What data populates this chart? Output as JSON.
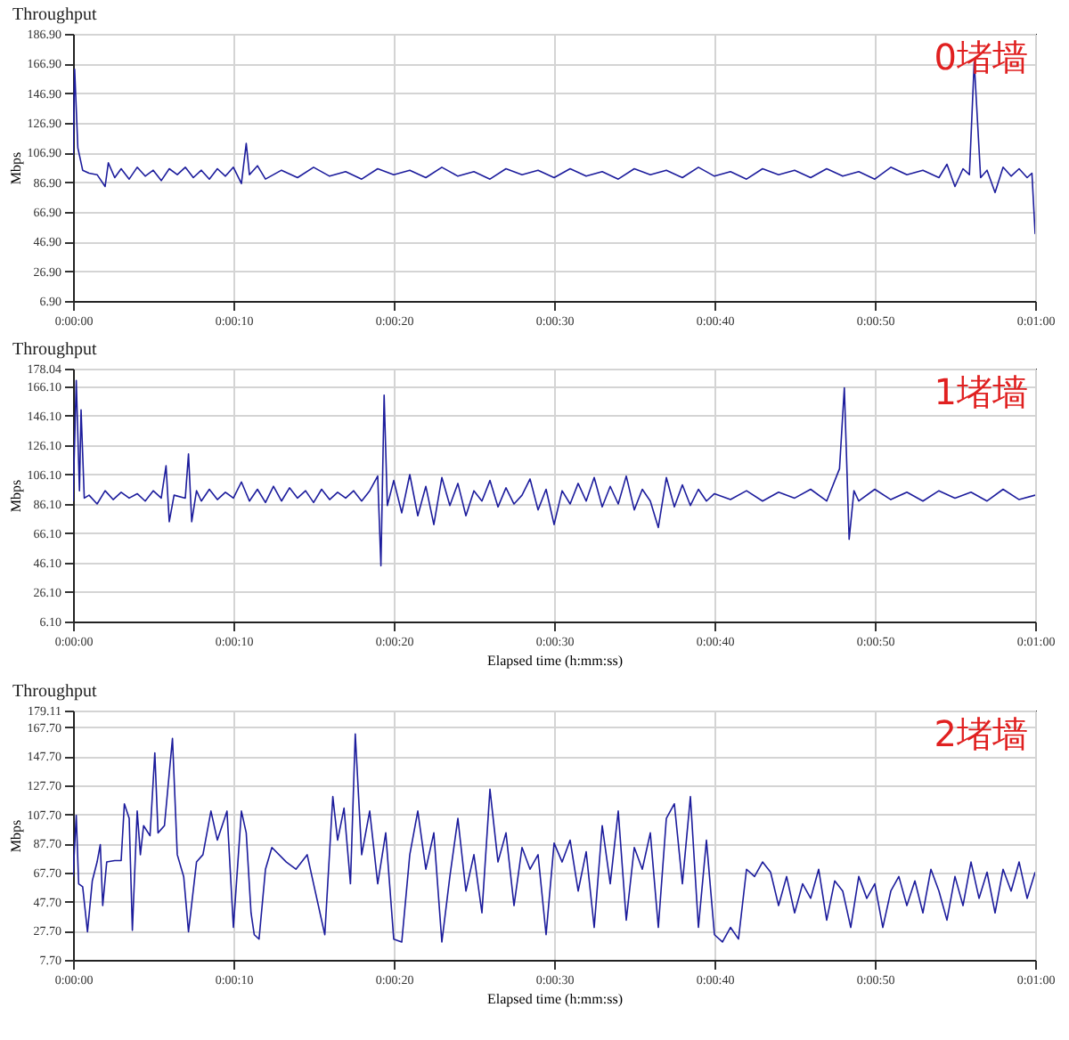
{
  "chart_data": [
    {
      "type": "line",
      "title": "Throughput",
      "ylabel": "Mbps",
      "annotations": [
        "0堵墙"
      ],
      "grid": true,
      "xlim": [
        0,
        60
      ],
      "xticks": [
        {
          "value": 0,
          "label": "0:00:00"
        },
        {
          "value": 10,
          "label": "0:00:10"
        },
        {
          "value": 20,
          "label": "0:00:20"
        },
        {
          "value": 30,
          "label": "0:00:30"
        },
        {
          "value": 40,
          "label": "0:00:40"
        },
        {
          "value": 50,
          "label": "0:00:50"
        },
        {
          "value": 60,
          "label": "0:01:00"
        }
      ],
      "ylim": [
        6.9,
        186.9
      ],
      "yticks": [
        {
          "value": 6.9,
          "label": "6.90"
        },
        {
          "value": 26.9,
          "label": "26.90"
        },
        {
          "value": 46.9,
          "label": "46.90"
        },
        {
          "value": 66.9,
          "label": "66.90"
        },
        {
          "value": 86.9,
          "label": "86.90"
        },
        {
          "value": 106.9,
          "label": "106.90"
        },
        {
          "value": 126.9,
          "label": "126.90"
        },
        {
          "value": 146.9,
          "label": "146.90"
        },
        {
          "value": 166.9,
          "label": "166.90"
        },
        {
          "value": 186.9,
          "label": "186.90"
        }
      ],
      "x": [
        0,
        0.1,
        0.3,
        0.6,
        1,
        1.5,
        2,
        2.2,
        2.6,
        3,
        3.5,
        4,
        4.5,
        5,
        5.5,
        6,
        6.5,
        7,
        7.5,
        8,
        8.5,
        9,
        9.5,
        10,
        10.5,
        10.8,
        11,
        11.5,
        12,
        13,
        14,
        15,
        16,
        17,
        18,
        19,
        20,
        21,
        22,
        23,
        24,
        25,
        26,
        27,
        28,
        29,
        30,
        31,
        32,
        33,
        34,
        35,
        36,
        37,
        38,
        39,
        40,
        41,
        42,
        43,
        44,
        45,
        46,
        47,
        48,
        49,
        50,
        51,
        52,
        53,
        54,
        54.5,
        55,
        55.5,
        55.9,
        56.2,
        56.6,
        57,
        57.5,
        58,
        58.5,
        59,
        59.5,
        59.8,
        60
      ],
      "series": [
        {
          "color": "#1c1c9c",
          "values": [
            105,
            163,
            110,
            95,
            93,
            92,
            84,
            100,
            90,
            96,
            89,
            97,
            91,
            95,
            88,
            96,
            92,
            97,
            90,
            95,
            89,
            96,
            91,
            97,
            86,
            113,
            92,
            98,
            89,
            95,
            90,
            97,
            91,
            94,
            89,
            96,
            92,
            95,
            90,
            97,
            91,
            94,
            89,
            96,
            92,
            95,
            90,
            96,
            91,
            94,
            89,
            96,
            92,
            95,
            90,
            97,
            91,
            94,
            89,
            96,
            92,
            95,
            90,
            96,
            91,
            94,
            89,
            97,
            92,
            95,
            90,
            99,
            84,
            96,
            92,
            168,
            90,
            95,
            80,
            97,
            91,
            96,
            90,
            93,
            52
          ]
        }
      ]
    },
    {
      "type": "line",
      "title": "Throughput",
      "ylabel": "Mbps",
      "xlabel": "Elapsed time (h:mm:ss)",
      "annotations": [
        "1堵墙"
      ],
      "grid": true,
      "xlim": [
        0,
        60
      ],
      "xticks": [
        {
          "value": 0,
          "label": "0:00:00"
        },
        {
          "value": 10,
          "label": "0:00:10"
        },
        {
          "value": 20,
          "label": "0:00:20"
        },
        {
          "value": 30,
          "label": "0:00:30"
        },
        {
          "value": 40,
          "label": "0:00:40"
        },
        {
          "value": 50,
          "label": "0:00:50"
        },
        {
          "value": 60,
          "label": "0:01:00"
        }
      ],
      "ylim": [
        6.1,
        178.04
      ],
      "yticks": [
        {
          "value": 6.1,
          "label": "6.10"
        },
        {
          "value": 26.1,
          "label": "26.10"
        },
        {
          "value": 46.1,
          "label": "46.10"
        },
        {
          "value": 66.1,
          "label": "66.10"
        },
        {
          "value": 86.1,
          "label": "86.10"
        },
        {
          "value": 106.1,
          "label": "106.10"
        },
        {
          "value": 126.1,
          "label": "126.10"
        },
        {
          "value": 146.1,
          "label": "146.10"
        },
        {
          "value": 166.1,
          "label": "166.10"
        },
        {
          "value": 178.04,
          "label": "178.04"
        }
      ],
      "x": [
        0,
        0.2,
        0.4,
        0.5,
        0.7,
        1,
        1.5,
        2,
        2.5,
        3,
        3.5,
        4,
        4.5,
        5,
        5.5,
        5.8,
        6,
        6.3,
        7,
        7.2,
        7.4,
        7.7,
        8,
        8.5,
        9,
        9.5,
        10,
        10.5,
        11,
        11.5,
        12,
        12.5,
        13,
        13.5,
        14,
        14.5,
        15,
        15.5,
        16,
        16.5,
        17,
        17.5,
        18,
        18.5,
        19,
        19.2,
        19.4,
        19.6,
        20,
        20.5,
        21,
        21.5,
        22,
        22.5,
        23,
        23.5,
        24,
        24.5,
        25,
        25.5,
        26,
        26.5,
        27,
        27.5,
        28,
        28.5,
        29,
        29.5,
        30,
        30.5,
        31,
        31.5,
        32,
        32.5,
        33,
        33.5,
        34,
        34.5,
        35,
        35.5,
        36,
        36.5,
        37,
        37.5,
        38,
        38.5,
        39,
        39.5,
        40,
        41,
        42,
        43,
        44,
        45,
        46,
        47,
        47.8,
        48.1,
        48.4,
        48.7,
        49,
        50,
        51,
        52,
        53,
        54,
        55,
        56,
        57,
        58,
        59,
        60
      ],
      "series": [
        {
          "color": "#1c1c9c",
          "values": [
            88,
            170,
            95,
            150,
            90,
            92,
            86,
            95,
            89,
            94,
            90,
            93,
            88,
            95,
            90,
            112,
            74,
            92,
            90,
            120,
            74,
            95,
            88,
            96,
            89,
            94,
            90,
            101,
            88,
            96,
            87,
            98,
            88,
            97,
            90,
            95,
            87,
            96,
            89,
            94,
            90,
            95,
            88,
            95,
            105,
            44,
            160,
            85,
            102,
            80,
            106,
            78,
            98,
            72,
            104,
            85,
            100,
            78,
            95,
            88,
            102,
            84,
            97,
            86,
            92,
            103,
            82,
            96,
            72,
            95,
            86,
            100,
            88,
            104,
            84,
            98,
            86,
            105,
            82,
            96,
            88,
            70,
            104,
            84,
            99,
            85,
            96,
            88,
            93,
            89,
            95,
            88,
            94,
            90,
            96,
            88,
            110,
            165,
            62,
            95,
            88,
            96,
            89,
            94,
            88,
            95,
            90,
            94,
            88,
            96,
            89,
            92
          ]
        }
      ]
    },
    {
      "type": "line",
      "title": "Throughput",
      "ylabel": "Mbps",
      "xlabel": "Elapsed time (h:mm:ss)",
      "annotations": [
        "2堵墙"
      ],
      "grid": true,
      "xlim": [
        0,
        60
      ],
      "xticks": [
        {
          "value": 0,
          "label": "0:00:00"
        },
        {
          "value": 10,
          "label": "0:00:10"
        },
        {
          "value": 20,
          "label": "0:00:20"
        },
        {
          "value": 30,
          "label": "0:00:30"
        },
        {
          "value": 40,
          "label": "0:00:40"
        },
        {
          "value": 50,
          "label": "0:00:50"
        },
        {
          "value": 60,
          "label": "0:01:00"
        }
      ],
      "ylim": [
        7.7,
        179.11
      ],
      "yticks": [
        {
          "value": 7.7,
          "label": "7.70"
        },
        {
          "value": 27.7,
          "label": "27.70"
        },
        {
          "value": 47.7,
          "label": "47.70"
        },
        {
          "value": 67.7,
          "label": "67.70"
        },
        {
          "value": 87.7,
          "label": "87.70"
        },
        {
          "value": 107.7,
          "label": "107.70"
        },
        {
          "value": 127.7,
          "label": "127.70"
        },
        {
          "value": 147.7,
          "label": "147.70"
        },
        {
          "value": 167.7,
          "label": "167.70"
        },
        {
          "value": 179.11,
          "label": "179.11"
        }
      ],
      "x": [
        0,
        0.2,
        0.35,
        0.6,
        0.9,
        1.2,
        1.5,
        1.7,
        1.85,
        2.1,
        2.6,
        3,
        3.2,
        3.5,
        3.7,
        4,
        4.2,
        4.4,
        4.8,
        5.1,
        5.3,
        5.7,
        6.2,
        6.5,
        6.9,
        7.2,
        7.7,
        8.1,
        8.6,
        9,
        9.6,
        10,
        10.5,
        10.8,
        11.1,
        11.3,
        11.6,
        12,
        12.4,
        13.3,
        13.9,
        14.6,
        15,
        15.7,
        16.2,
        16.5,
        16.9,
        17.3,
        17.6,
        18,
        18.5,
        19,
        19.5,
        20,
        20.5,
        21,
        21.5,
        22,
        22.5,
        23,
        23.5,
        24,
        24.5,
        25,
        25.5,
        26,
        26.5,
        27,
        27.5,
        28,
        28.5,
        29,
        29.5,
        30,
        30.5,
        31,
        31.5,
        32,
        32.5,
        33,
        33.5,
        34,
        34.5,
        35,
        35.5,
        36,
        36.5,
        37,
        37.5,
        38,
        38.5,
        39,
        39.5,
        40,
        40.5,
        41,
        41.5,
        42,
        42.5,
        43,
        43.5,
        44,
        44.5,
        45,
        45.5,
        46,
        46.5,
        47,
        47.5,
        48,
        48.5,
        49,
        49.5,
        50,
        50.5,
        51,
        51.5,
        52,
        52.5,
        53,
        53.5,
        54,
        54.5,
        55,
        55.5,
        56,
        56.5,
        57,
        57.5,
        58,
        58.5,
        59,
        59.5,
        60
      ],
      "series": [
        {
          "color": "#1c1c9c",
          "values": [
            65,
            107,
            60,
            58,
            27,
            62,
            75,
            87,
            45,
            75,
            76,
            76,
            115,
            105,
            28,
            110,
            80,
            100,
            93,
            150,
            95,
            100,
            160,
            80,
            65,
            27,
            75,
            80,
            110,
            90,
            110,
            30,
            110,
            95,
            40,
            25,
            22,
            70,
            85,
            75,
            70,
            80,
            60,
            25,
            120,
            90,
            112,
            60,
            163,
            80,
            110,
            60,
            95,
            22,
            20,
            80,
            110,
            70,
            95,
            20,
            65,
            105,
            55,
            80,
            40,
            125,
            75,
            95,
            45,
            85,
            70,
            80,
            25,
            88,
            75,
            90,
            55,
            82,
            30,
            100,
            60,
            110,
            35,
            85,
            70,
            95,
            30,
            105,
            115,
            60,
            120,
            30,
            90,
            25,
            20,
            30,
            22,
            70,
            65,
            75,
            68,
            45,
            65,
            40,
            60,
            50,
            70,
            35,
            62,
            55,
            30,
            65,
            50,
            60,
            30,
            55,
            65,
            45,
            62,
            40,
            70,
            55,
            35,
            65,
            45,
            75,
            50,
            68,
            40,
            70,
            55,
            75,
            50,
            68
          ]
        }
      ]
    }
  ]
}
